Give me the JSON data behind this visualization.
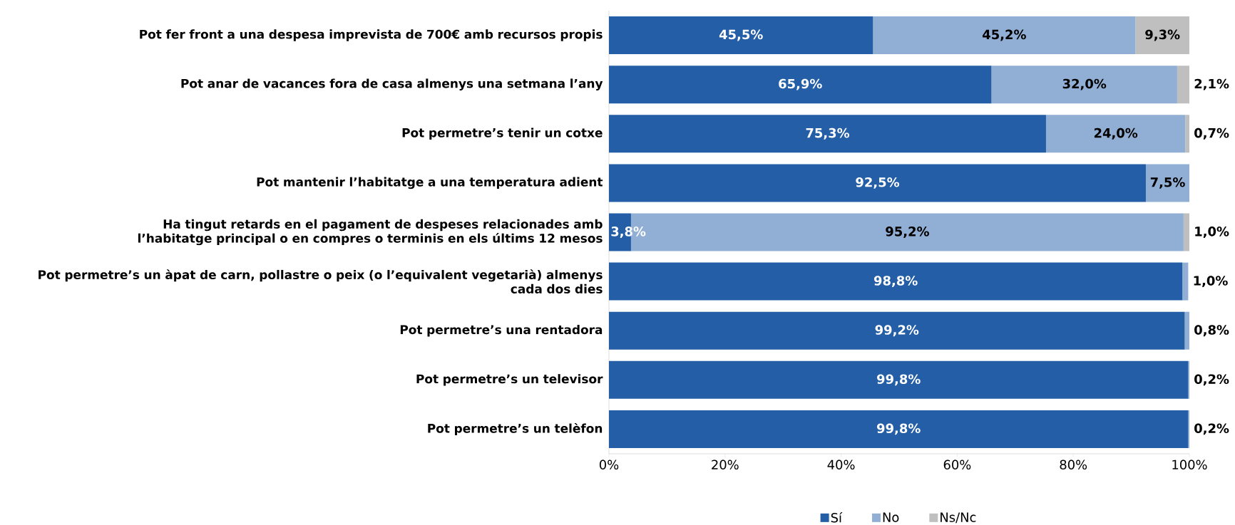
{
  "chart_data": {
    "type": "bar",
    "orientation": "horizontal",
    "stacked": true,
    "legend": "bottom",
    "categories": [
      "Pot fer front a una despesa imprevista de 700€ amb recursos propis",
      "Pot anar de vacances fora de casa almenys una setmana l’any",
      "Pot permetre’s tenir un cotxe",
      "Pot mantenir l’habitatge a una temperatura adient",
      "Ha tingut retards en el pagament de despeses relacionades amb l’habitatge principal o en compres o terminis en els últims 12 mesos",
      "Pot permetre’s un àpat de carn, pollastre o peix (o l’equivalent vegetarià) almenys cada dos dies",
      "Pot permetre’s una rentadora",
      "Pot permetre’s un televisor",
      "Pot permetre’s un telèfon"
    ],
    "xlim": [
      0,
      100
    ],
    "xticks": [
      {
        "value": 0,
        "label": "0%"
      },
      {
        "value": 20,
        "label": "20%"
      },
      {
        "value": 40,
        "label": "40%"
      },
      {
        "value": 60,
        "label": "60%"
      },
      {
        "value": 80,
        "label": "80%"
      },
      {
        "value": 100,
        "label": "100%"
      }
    ],
    "series": [
      {
        "name": "Sí",
        "color": "#235ea6",
        "values": [
          45.5,
          65.9,
          75.3,
          92.5,
          3.8,
          98.8,
          99.2,
          99.8,
          99.8
        ],
        "value_labels": [
          "45,5%",
          "65,9%",
          "75,3%",
          "92,5%",
          "3,8%",
          "98,8%",
          "99,2%",
          "99,8%",
          "99,8%"
        ]
      },
      {
        "name": "No",
        "color": "#91afd5",
        "values": [
          45.2,
          32.0,
          24.0,
          7.5,
          95.2,
          1.0,
          0.8,
          0.2,
          0.2
        ],
        "value_labels": [
          "45,2%",
          "32,0%",
          "24,0%",
          "7,5%",
          "95,2%",
          "1,0%",
          "0,8%",
          "0,2%",
          "0,2%"
        ]
      },
      {
        "name": "Ns/Nc",
        "color": "#bfbfbf",
        "values": [
          9.3,
          2.1,
          0.7,
          null,
          1.0,
          null,
          null,
          null,
          null
        ],
        "value_labels": [
          "9,3%",
          "2,1%",
          "0,7%",
          null,
          "1,0%",
          null,
          null,
          null,
          null
        ]
      }
    ]
  }
}
